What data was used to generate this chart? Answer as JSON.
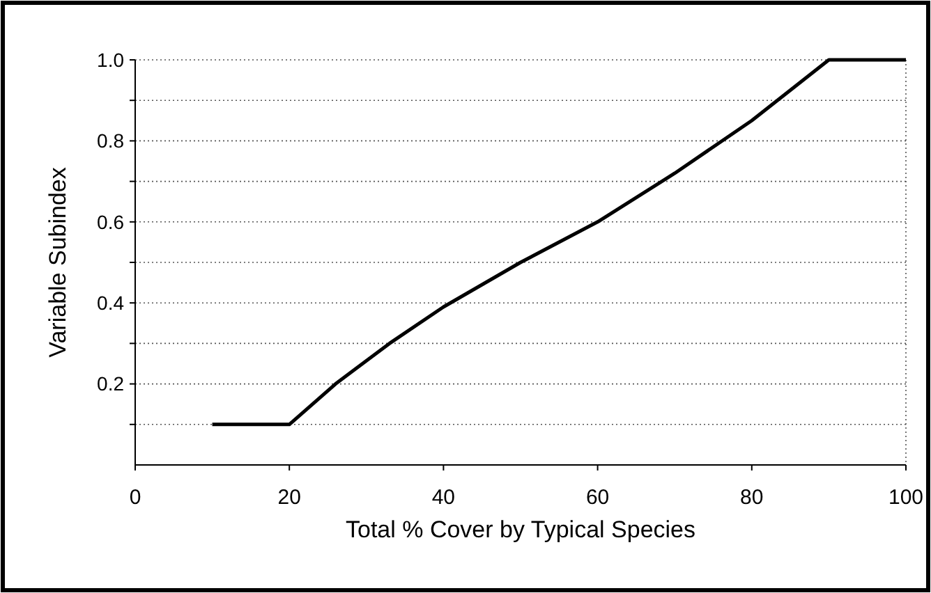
{
  "chart_data": {
    "type": "line",
    "xlabel": "Total % Cover by Typical Species",
    "ylabel": "Variable Subindex",
    "x": [
      10,
      20,
      26,
      33,
      40,
      50,
      60,
      70,
      80,
      90,
      100
    ],
    "series": [
      {
        "color": "#000000",
        "values": [
          0.1,
          0.1,
          0.2,
          0.3,
          0.39,
          0.5,
          0.6,
          0.72,
          0.85,
          1.0,
          1.0
        ]
      }
    ],
    "xlim": [
      0,
      100
    ],
    "xticks": [
      0,
      20,
      40,
      60,
      80,
      100
    ],
    "ylim": [
      0,
      1
    ],
    "yticks": [
      {
        "value": 0.1,
        "label": null
      },
      0.2,
      {
        "value": 0.3,
        "label": null
      },
      0.4,
      {
        "value": 0.5,
        "label": null
      },
      0.6,
      {
        "value": 0.7,
        "label": null
      },
      0.8,
      {
        "value": 0.9,
        "label": null
      },
      {
        "value": 1,
        "label": "1.0"
      }
    ],
    "grid": "y",
    "marker": "none",
    "line_style": "solid"
  }
}
